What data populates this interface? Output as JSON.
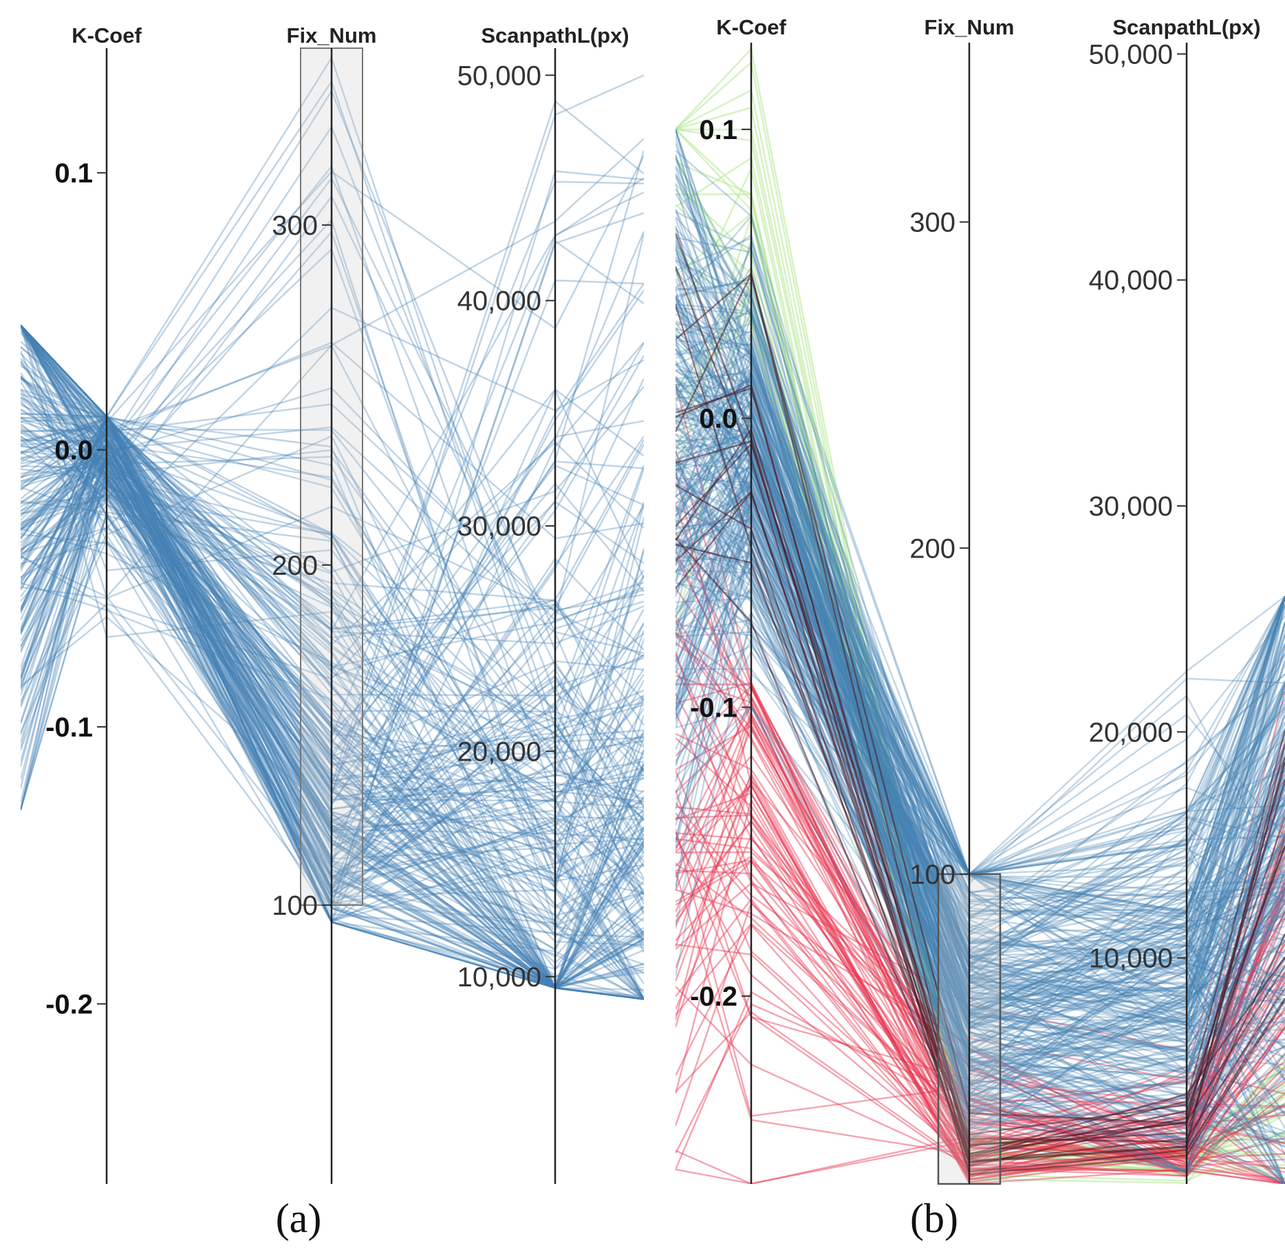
{
  "chart_data": [
    {
      "type": "parallel-coordinates",
      "panel_label": "(a)",
      "axes": [
        {
          "name": "K-Coef",
          "range": [
            -0.265,
            0.145
          ],
          "ticks": [
            {
              "value": 0.1,
              "label": "0.1"
            },
            {
              "value": 0.0,
              "label": "0.0"
            },
            {
              "value": -0.1,
              "label": "-0.1"
            },
            {
              "value": -0.2,
              "label": "-0.2"
            }
          ]
        },
        {
          "name": "Fix_Num",
          "range": [
            18,
            352
          ],
          "ticks": [
            {
              "value": 300,
              "label": "300"
            },
            {
              "value": 200,
              "label": "200"
            },
            {
              "value": 100,
              "label": "100"
            }
          ]
        },
        {
          "name": "ScanpathL(px)",
          "range": [
            800,
            51200
          ],
          "ticks": [
            {
              "value": 50000,
              "label": "50,000"
            },
            {
              "value": 40000,
              "label": "40,000"
            },
            {
              "value": 30000,
              "label": "30,000"
            },
            {
              "value": 20000,
              "label": "20,000"
            },
            {
              "value": 10000,
              "label": "10,000"
            }
          ]
        }
      ],
      "brush": {
        "axis": "Fix_Num",
        "range": [
          100,
          355
        ]
      },
      "series_color": "#4682b4",
      "line_count": 260
    },
    {
      "type": "parallel-coordinates",
      "panel_label": "(b)",
      "axes": [
        {
          "name": "K-Coef",
          "range": [
            -0.265,
            0.13
          ],
          "ticks": [
            {
              "value": 0.1,
              "label": "0.1"
            },
            {
              "value": 0.0,
              "label": "0.0"
            },
            {
              "value": -0.1,
              "label": "-0.1"
            },
            {
              "value": -0.2,
              "label": "-0.2"
            }
          ]
        },
        {
          "name": "Fix_Num",
          "range": [
            5,
            355
          ],
          "ticks": [
            {
              "value": 300,
              "label": "300"
            },
            {
              "value": 200,
              "label": "200"
            },
            {
              "value": 100,
              "label": "100"
            }
          ]
        },
        {
          "name": "ScanpathL(px)",
          "range": [
            0,
            50500
          ],
          "ticks": [
            {
              "value": 50000,
              "label": "50,000"
            },
            {
              "value": 40000,
              "label": "40,000"
            },
            {
              "value": 30000,
              "label": "30,000"
            },
            {
              "value": 20000,
              "label": "20,000"
            },
            {
              "value": 10000,
              "label": "10,000"
            }
          ]
        }
      ],
      "brush": {
        "axis": "Fix_Num",
        "range": [
          5,
          100
        ]
      },
      "series_colors": {
        "primary": "#4682b4",
        "low": "#e8364f",
        "high": "#aee88a",
        "dark": "#4a1a24"
      },
      "line_count": 420
    }
  ]
}
